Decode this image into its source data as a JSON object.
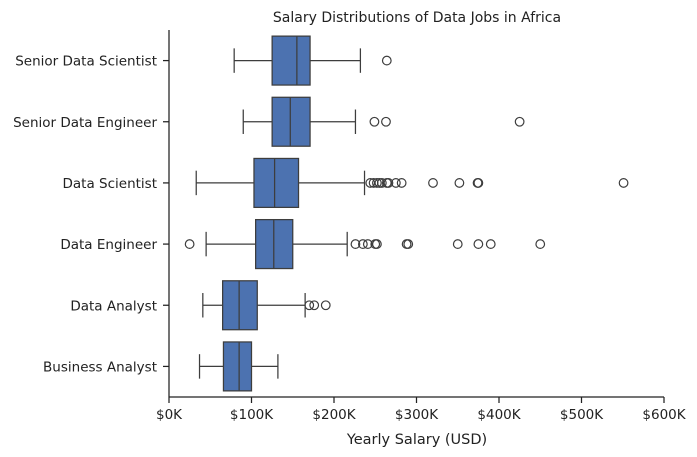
{
  "chart_data": {
    "type": "box",
    "title": "Salary Distributions of Data Jobs in Africa",
    "xlabel": "Yearly Salary (USD)",
    "ylabel": "",
    "xlim": [
      0,
      600000
    ],
    "x_ticks": [
      0,
      100000,
      200000,
      300000,
      400000,
      500000,
      600000
    ],
    "x_tick_labels": [
      "$0K",
      "$100K",
      "$200K",
      "$300K",
      "$400K",
      "$500K",
      "$600K"
    ],
    "grid": false,
    "box_color": "#4c72b0",
    "categories": [
      {
        "name": "Senior Data Scientist",
        "whisker_low": 79000,
        "q1": 125000,
        "median": 155000,
        "q3": 171000,
        "whisker_high": 232000,
        "outliers": [
          264000
        ]
      },
      {
        "name": "Senior Data Engineer",
        "whisker_low": 90000,
        "q1": 125000,
        "median": 147000,
        "q3": 171000,
        "whisker_high": 226000,
        "outliers": [
          249000,
          263000,
          425000
        ]
      },
      {
        "name": "Data Scientist",
        "whisker_low": 33000,
        "q1": 103000,
        "median": 128000,
        "q3": 157000,
        "whisker_high": 237000,
        "outliers": [
          244000,
          248000,
          252000,
          255000,
          258000,
          264000,
          266000,
          275000,
          282000,
          320000,
          352000,
          374000,
          375000,
          551000
        ]
      },
      {
        "name": "Data Engineer",
        "whisker_low": 45000,
        "q1": 105000,
        "median": 127000,
        "q3": 150000,
        "whisker_high": 216000,
        "outliers": [
          25000,
          226000,
          235000,
          241000,
          250000,
          252000,
          288000,
          290000,
          350000,
          375000,
          390000,
          450000
        ]
      },
      {
        "name": "Data Analyst",
        "whisker_low": 41000,
        "q1": 65000,
        "median": 85000,
        "q3": 107000,
        "whisker_high": 165000,
        "outliers": [
          170000,
          176000,
          190000
        ]
      },
      {
        "name": "Business Analyst",
        "whisker_low": 37000,
        "q1": 66000,
        "median": 85000,
        "q3": 100000,
        "whisker_high": 132000,
        "outliers": []
      }
    ]
  }
}
